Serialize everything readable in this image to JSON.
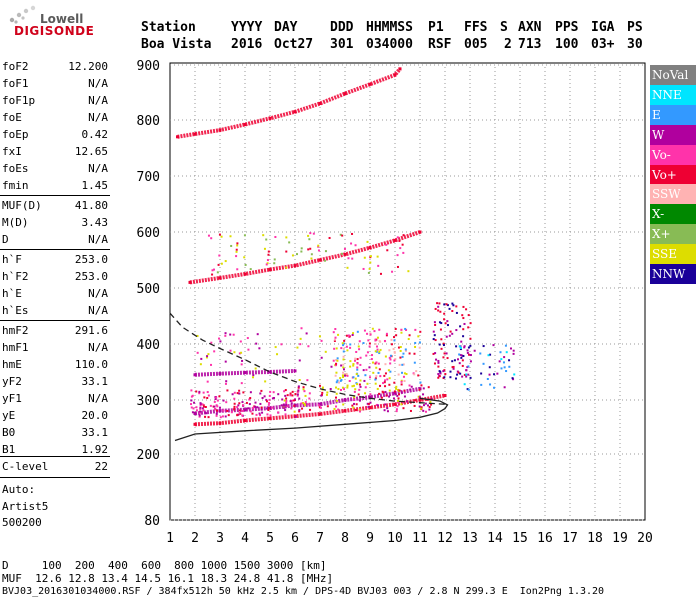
{
  "logo": {
    "line1": "Lowell",
    "line2": "DIGISONDE"
  },
  "header": {
    "labels": [
      "Station",
      "YYYY",
      "DAY",
      "DDD",
      "HHMMSS",
      "P1",
      "FFS",
      "S",
      "AXN",
      "PPS",
      "IGA",
      "PS"
    ],
    "values": [
      "Boa Vista",
      "2016",
      "Oct27",
      "301",
      "034000",
      "RSF",
      "005",
      "2",
      "713",
      "100",
      "03+",
      "30"
    ]
  },
  "params": {
    "group1": [
      {
        "label": "foF2",
        "value": "12.200"
      },
      {
        "label": "foF1",
        "value": "N/A"
      },
      {
        "label": "foF1p",
        "value": "N/A"
      },
      {
        "label": "foE",
        "value": "N/A"
      },
      {
        "label": "foEp",
        "value": "0.42"
      },
      {
        "label": "fxI",
        "value": "12.65"
      },
      {
        "label": "foEs",
        "value": "N/A"
      },
      {
        "label": "fmin",
        "value": "1.45"
      }
    ],
    "group2": [
      {
        "label": "MUF(D)",
        "value": "41.80"
      },
      {
        "label": "M(D)",
        "value": "3.43"
      },
      {
        "label": "D",
        "value": "N/A"
      }
    ],
    "group3": [
      {
        "label": "h`F",
        "value": "253.0"
      },
      {
        "label": "h`F2",
        "value": "253.0"
      },
      {
        "label": "h`E",
        "value": "N/A"
      },
      {
        "label": "h`Es",
        "value": "N/A"
      }
    ],
    "group4": [
      {
        "label": "hmF2",
        "value": "291.6"
      },
      {
        "label": "hmF1",
        "value": "N/A"
      },
      {
        "label": "hmE",
        "value": "110.0"
      },
      {
        "label": "yF2",
        "value": "33.1"
      },
      {
        "label": "yF1",
        "value": "N/A"
      },
      {
        "label": "yE",
        "value": "20.0"
      },
      {
        "label": "B0",
        "value": "33.1"
      },
      {
        "label": "B1",
        "value": "1.92"
      }
    ],
    "group5": [
      {
        "label": "C-level",
        "value": "22"
      }
    ],
    "autoscale": [
      "Auto:",
      "Artist5",
      "500200"
    ]
  },
  "legend": [
    {
      "label": "NoVal",
      "color": "#808080",
      "text": "#ffffff"
    },
    {
      "label": "NNE",
      "color": "#00e5ff",
      "text": "#ffffff"
    },
    {
      "label": "E",
      "color": "#3399ff",
      "text": "#ffffff"
    },
    {
      "label": "W",
      "color": "#b0009e",
      "text": "#ffffff"
    },
    {
      "label": "Vo-",
      "color": "#ff33aa",
      "text": "#ffffff"
    },
    {
      "label": "Vo+",
      "color": "#ee0033",
      "text": "#ffffff"
    },
    {
      "label": "SSW",
      "color": "#ffb3b3",
      "text": "#ffffff"
    },
    {
      "label": "X-",
      "color": "#008800",
      "text": "#ffffff"
    },
    {
      "label": "X+",
      "color": "#88bb55",
      "text": "#ffffff"
    },
    {
      "label": "SSE",
      "color": "#dddd00",
      "text": "#ffffff"
    },
    {
      "label": "NNW",
      "color": "#1a0099",
      "text": "#ffffff"
    }
  ],
  "footer": {
    "line1": "D     100  200  400  600  800 1000 1500 3000 [km]",
    "line2": "MUF  12.6 12.8 13.4 14.5 16.1 18.3 24.8 41.8 [MHz]",
    "line3": "BVJ03_2016301034000.RSF / 384fx512h 50 kHz 2.5 km / DPS-4D BVJ03 003 / 2.8 N 299.3 E  Ion2Png 1.3.20"
  },
  "chart_data": {
    "type": "scatter",
    "title": "",
    "xlabel": "",
    "ylabel": "",
    "xlim": [
      1,
      20
    ],
    "ylim": [
      80,
      900
    ],
    "x_ticks": [
      1,
      2,
      3,
      4,
      5,
      6,
      7,
      8,
      9,
      10,
      11,
      12,
      13,
      14,
      15,
      16,
      17,
      18,
      19,
      20
    ],
    "y_ticks": [
      80,
      200,
      300,
      400,
      500,
      600,
      700,
      800,
      900
    ],
    "grid": true,
    "legend_placement": "right",
    "traces": [
      {
        "name": "main-ordinary-trace",
        "color": "#ee0033",
        "x": [
          2.0,
          3.0,
          4.0,
          5.0,
          6.0,
          7.0,
          8.0,
          9.0,
          10.0,
          11.0,
          12.0
        ],
        "y": [
          255,
          257,
          262,
          266,
          270,
          274,
          280,
          286,
          292,
          300,
          308
        ]
      },
      {
        "name": "lower-magenta-band",
        "color": "#b0009e",
        "x": [
          2.0,
          3.0,
          4.0,
          5.0,
          6.0,
          7.0,
          8.0,
          9.0,
          10.0,
          11.0
        ],
        "y": [
          275,
          280,
          282,
          285,
          290,
          292,
          300,
          305,
          312,
          320
        ]
      },
      {
        "name": "upper-magenta-band",
        "color": "#b0009e",
        "x": [
          2.0,
          3.0,
          4.0,
          5.0,
          6.0
        ],
        "y": [
          345,
          347,
          349,
          350,
          352
        ]
      },
      {
        "name": "second-hop-trace",
        "color": "#ee0033",
        "x": [
          1.8,
          3.0,
          4.0,
          5.0,
          6.0,
          7.0,
          8.0,
          9.0,
          10.0,
          11.0
        ],
        "y": [
          510,
          518,
          525,
          533,
          540,
          550,
          560,
          572,
          585,
          600
        ]
      },
      {
        "name": "third-hop-trace",
        "color": "#ee0033",
        "x": [
          1.3,
          2.0,
          3.0,
          4.0,
          5.0,
          6.0,
          7.0,
          8.0,
          9.0,
          10.0,
          10.2
        ],
        "y": [
          770,
          775,
          782,
          792,
          803,
          815,
          830,
          848,
          865,
          882,
          893
        ]
      }
    ],
    "profile": {
      "x": [
        1.2,
        2.0,
        4.0,
        6.0,
        8.0,
        10.0,
        11.0,
        11.7,
        12.0,
        12.1,
        11.8,
        11.0
      ],
      "y": [
        225,
        237,
        243,
        248,
        255,
        262,
        268,
        276,
        284,
        291,
        298,
        303
      ]
    },
    "dashed_profile": {
      "x": [
        1.0,
        1.5,
        2.3,
        3.0,
        4.0,
        5.0,
        6.0,
        7.0,
        8.0,
        9.0,
        10.0,
        11.0,
        12.0,
        12.1
      ],
      "y": [
        455,
        430,
        407,
        392,
        372,
        350,
        333,
        320,
        310,
        303,
        298,
        295,
        292,
        291
      ]
    }
  }
}
